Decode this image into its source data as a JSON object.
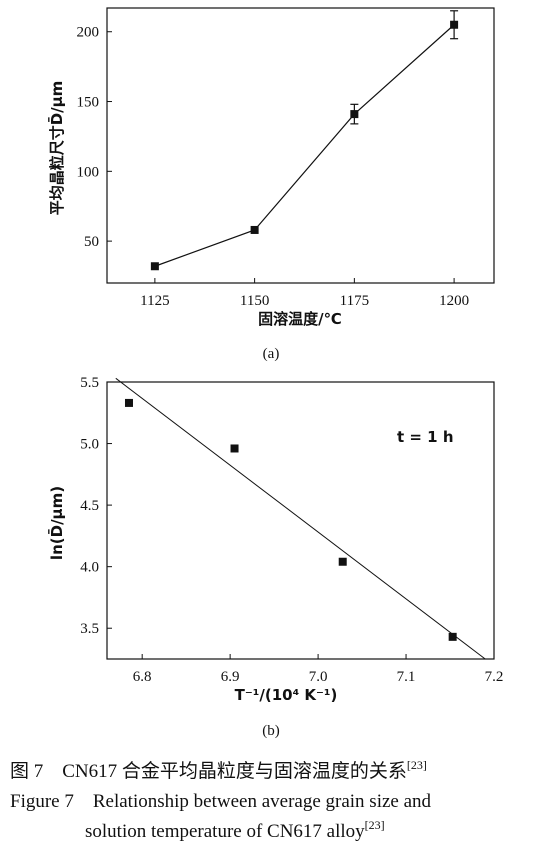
{
  "chart_data": [
    {
      "type": "line",
      "panel_label": "(a)",
      "xlabel": "固溶温度/℃",
      "ylabel": "平均晶粒尺寸D̄/μm",
      "x_ticks": [
        1125,
        1150,
        1175,
        1200
      ],
      "y_ticks": [
        50,
        100,
        150,
        200
      ],
      "xlim": [
        1113,
        1210
      ],
      "ylim": [
        20,
        217
      ],
      "grid": false,
      "series": [
        {
          "x": [
            1125,
            1150,
            1175,
            1200
          ],
          "y": [
            32,
            58,
            141,
            205
          ],
          "error": [
            null,
            null,
            7,
            10
          ]
        }
      ]
    },
    {
      "type": "scatter",
      "panel_label": "(b)",
      "xlabel": "T⁻¹/(10⁴ K⁻¹)",
      "ylabel": "ln(D̄/μm)",
      "annotation": "t = 1 h",
      "x_ticks": [
        "6.8",
        "6.9",
        "7.0",
        "7.1",
        "7.2"
      ],
      "y_ticks": [
        "3.5",
        "4.0",
        "4.5",
        "5.0",
        "5.5"
      ],
      "xlim": [
        6.76,
        7.2
      ],
      "ylim": [
        3.25,
        5.5
      ],
      "grid": false,
      "series": [
        {
          "x": [
            6.785,
            6.905,
            7.028,
            7.153
          ],
          "y": [
            5.33,
            4.96,
            4.04,
            3.43
          ]
        }
      ],
      "fit_line": {
        "x": [
          6.77,
          7.19
        ],
        "y": [
          5.53,
          3.25
        ]
      }
    }
  ],
  "caption": {
    "zh": "图 7　CN617 合金平均晶粒度与固溶温度的关系",
    "zh_ref": "[23]",
    "en_line1": "Figure 7　Relationship between average grain size and",
    "en_line2": "solution temperature of CN617 alloy",
    "en_ref": "[23]"
  }
}
